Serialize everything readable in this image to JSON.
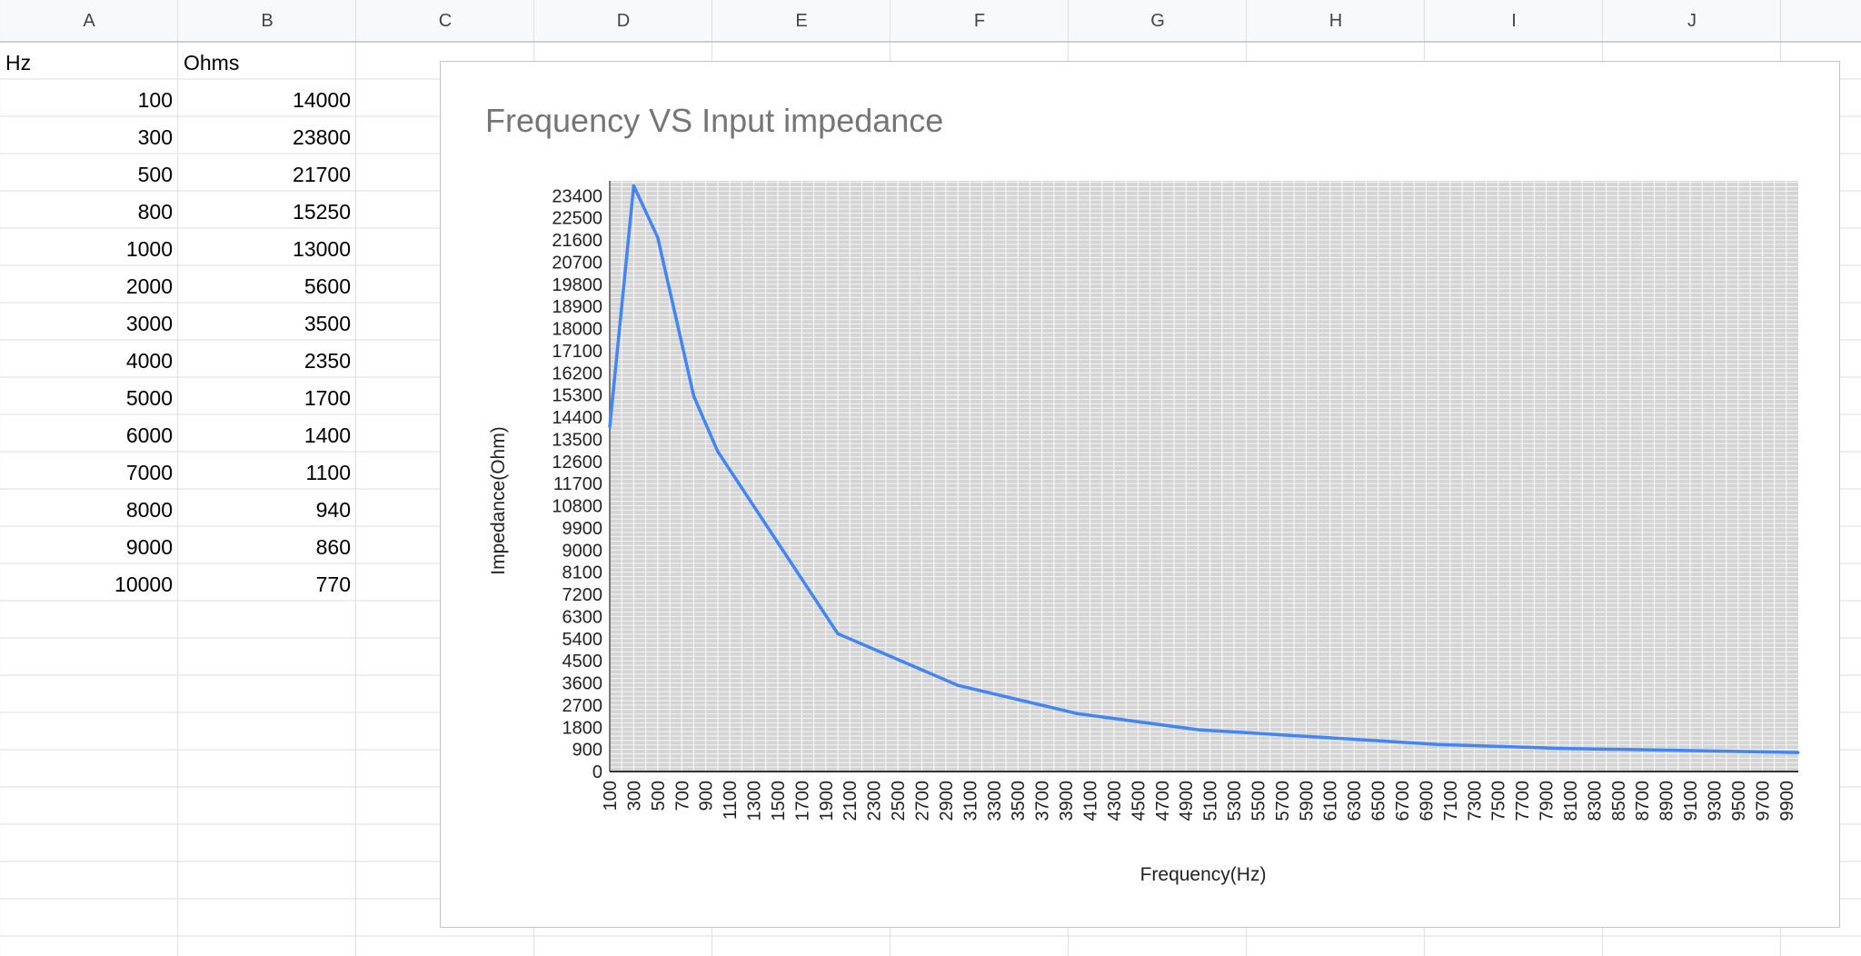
{
  "spreadsheet": {
    "columns": [
      "A",
      "B",
      "C",
      "D",
      "E",
      "F",
      "G",
      "H",
      "I",
      "J",
      ""
    ],
    "header_row": {
      "a": "Hz",
      "b": "Ohms"
    },
    "rows": [
      {
        "hz": "100",
        "ohms": "14000"
      },
      {
        "hz": "300",
        "ohms": "23800"
      },
      {
        "hz": "500",
        "ohms": "21700"
      },
      {
        "hz": "800",
        "ohms": "15250"
      },
      {
        "hz": "1000",
        "ohms": "13000"
      },
      {
        "hz": "2000",
        "ohms": "5600"
      },
      {
        "hz": "3000",
        "ohms": "3500"
      },
      {
        "hz": "4000",
        "ohms": "2350"
      },
      {
        "hz": "5000",
        "ohms": "1700"
      },
      {
        "hz": "6000",
        "ohms": "1400"
      },
      {
        "hz": "7000",
        "ohms": "1100"
      },
      {
        "hz": "8000",
        "ohms": "940"
      },
      {
        "hz": "9000",
        "ohms": "860"
      },
      {
        "hz": "10000",
        "ohms": "770"
      }
    ]
  },
  "chart_data": {
    "type": "line",
    "title": "Frequency VS Input impedance",
    "xlabel": "Frequency(Hz)",
    "ylabel": "Impedance(Ohm)",
    "x": [
      100,
      300,
      500,
      800,
      1000,
      2000,
      3000,
      4000,
      5000,
      6000,
      7000,
      8000,
      9000,
      10000
    ],
    "series": [
      {
        "values": [
          14000,
          23800,
          21700,
          15250,
          13000,
          5600,
          3500,
          2350,
          1700,
          1400,
          1100,
          940,
          860,
          770
        ]
      }
    ],
    "xlim": [
      100,
      10000
    ],
    "x_ticks_start": 100,
    "x_ticks_step": 200,
    "x_ticks_end": 9900,
    "ylim": [
      0,
      24000
    ],
    "y_ticks_step": 900,
    "y_ticks_end": 23400,
    "grid": true,
    "line_color": "#4285f4",
    "plot_background": "#d4d4d4",
    "legend": "none"
  }
}
